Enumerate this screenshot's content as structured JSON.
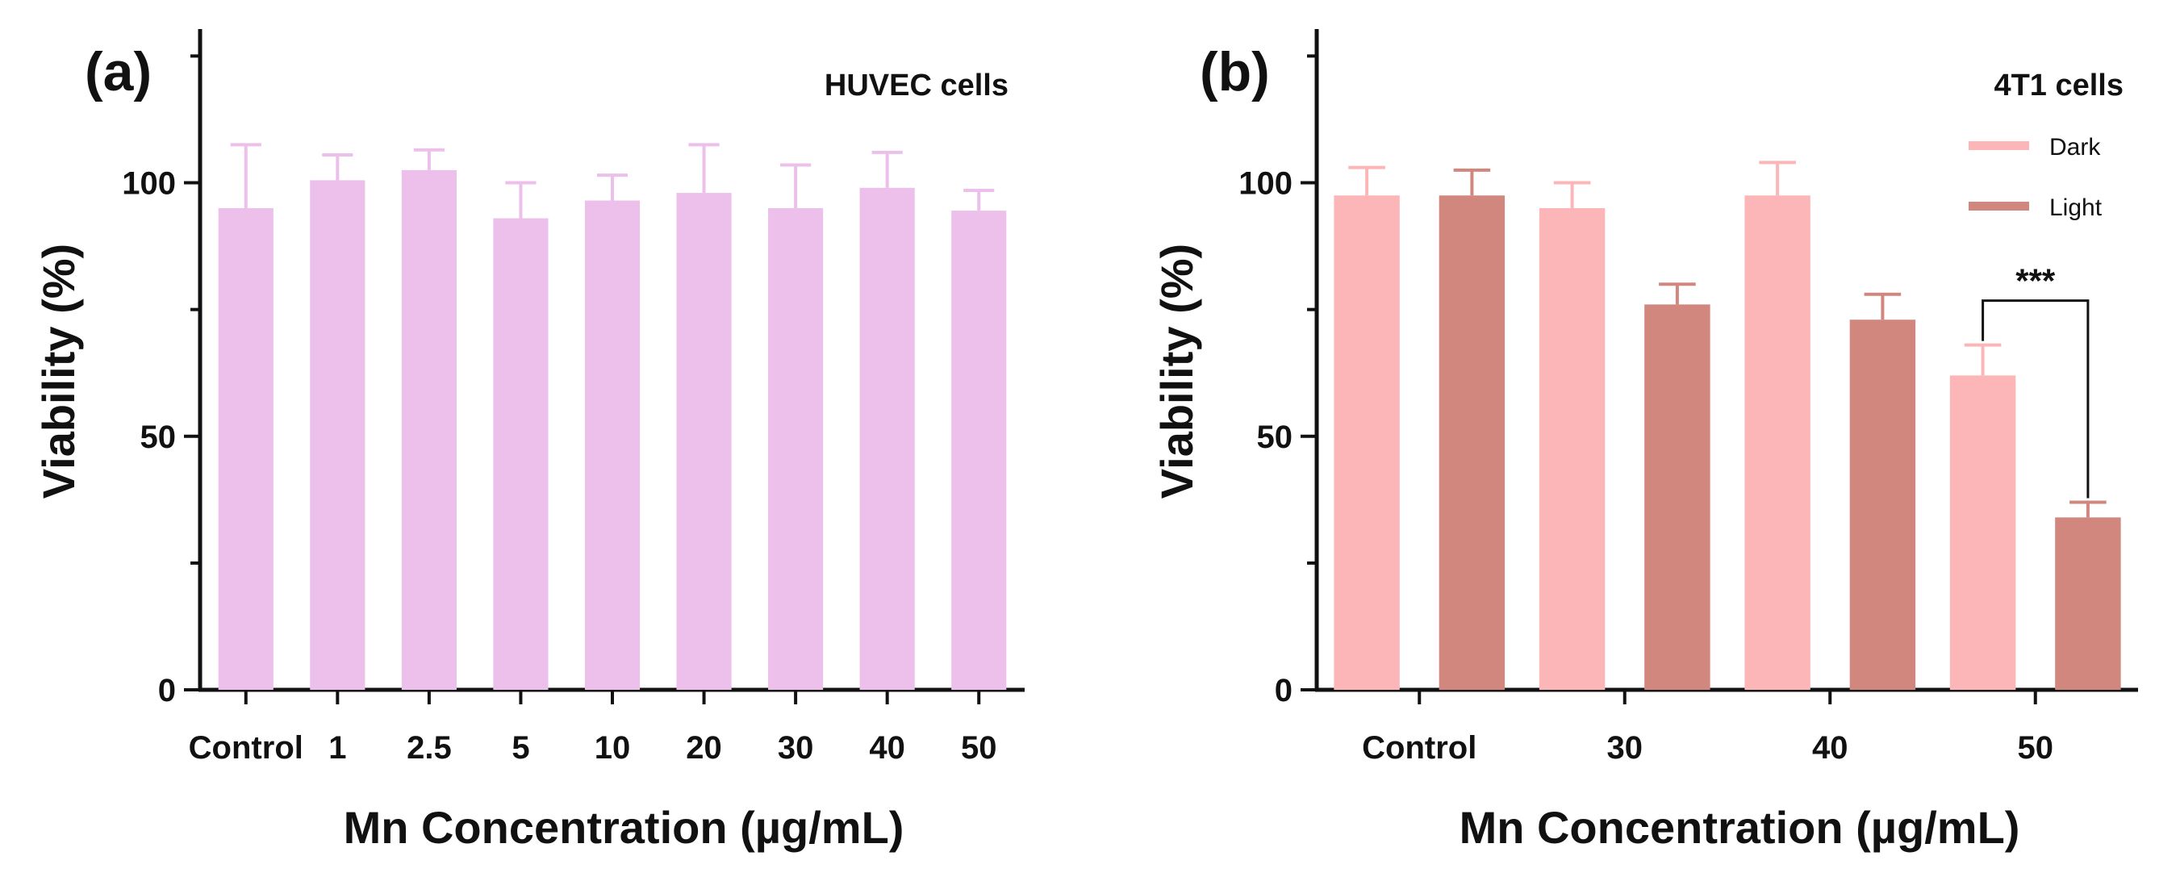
{
  "chart_data": [
    {
      "type": "bar",
      "panel_label": "(a)",
      "title": "HUVEC cells",
      "xlabel": "Mn Concentration (µg/mL)",
      "ylabel": "Viability (%)",
      "ylim": [
        0,
        130
      ],
      "yticks": [
        0,
        50,
        100
      ],
      "grid": false,
      "categories": [
        "Control",
        "1",
        "2.5",
        "5",
        "10",
        "20",
        "30",
        "40",
        "50"
      ],
      "series": [
        {
          "name": "HUVEC",
          "color": "#ECC0EA",
          "values": [
            95,
            100.5,
            102.5,
            93,
            96.5,
            98,
            95,
            99,
            94.5
          ],
          "errors": [
            12.5,
            5,
            4,
            7,
            5,
            9.5,
            8.5,
            7,
            4
          ]
        }
      ],
      "annotations": []
    },
    {
      "type": "bar",
      "panel_label": "(b)",
      "title": "4T1 cells",
      "xlabel": "Mn Concentration (µg/mL)",
      "ylabel": "Viability (%)",
      "ylim": [
        0,
        130
      ],
      "yticks": [
        0,
        50,
        100
      ],
      "grid": false,
      "legend_position": "top-right",
      "categories": [
        "Control",
        "30",
        "40",
        "50"
      ],
      "series": [
        {
          "name": "Dark",
          "color": "#FDB6B7",
          "values": [
            97.5,
            95,
            97.5,
            62
          ],
          "errors": [
            5.5,
            5,
            6.5,
            6
          ]
        },
        {
          "name": "Light",
          "color": "#D1877E",
          "values": [
            97.5,
            76,
            73,
            34
          ],
          "errors": [
            5,
            4,
            5,
            3
          ]
        }
      ],
      "annotations": [
        {
          "text": "***",
          "category": "50",
          "between": [
            "Dark",
            "Light"
          ]
        }
      ]
    }
  ]
}
